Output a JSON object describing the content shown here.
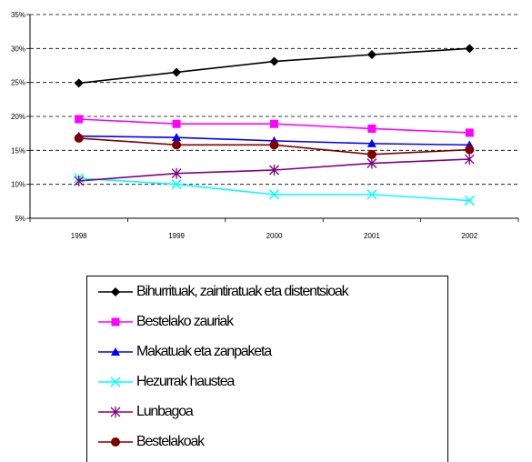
{
  "chart_data": {
    "type": "line",
    "categories": [
      "1998",
      "1999",
      "2000",
      "2001",
      "2002"
    ],
    "ylim": [
      5,
      35
    ],
    "yticks": [
      "5%",
      "10%",
      "15%",
      "20%",
      "25%",
      "30%",
      "35%"
    ],
    "yticks_values": [
      5,
      10,
      15,
      20,
      25,
      30,
      35
    ],
    "grid": "horizontal dashed",
    "legend_position": "bottom",
    "series": [
      {
        "name": "Bihurrituak, zaintiratuak eta distentsioak",
        "values": [
          24.9,
          26.5,
          28.1,
          29.1,
          30.0
        ],
        "color": "#000000",
        "marker": "diamond"
      },
      {
        "name": "Bestelako zauriak",
        "values": [
          19.6,
          18.9,
          18.9,
          18.2,
          17.6
        ],
        "color": "#ff00ff",
        "marker": "square"
      },
      {
        "name": "Makatuak eta zanpaketa",
        "values": [
          17.1,
          16.9,
          16.4,
          16.0,
          15.8
        ],
        "color": "#0000ff",
        "marker": "triangle"
      },
      {
        "name": "Hezurrak haustea",
        "values": [
          10.9,
          10.0,
          8.5,
          8.5,
          7.6
        ],
        "color": "#00ffff",
        "marker": "x"
      },
      {
        "name": "Lunbagoa",
        "values": [
          10.5,
          11.6,
          12.1,
          13.1,
          13.7
        ],
        "color": "#800080",
        "marker": "star"
      },
      {
        "name": "Bestelakoak",
        "values": [
          16.8,
          15.8,
          15.8,
          14.4,
          15.1
        ],
        "color": "#800000",
        "marker": "circle"
      }
    ]
  }
}
